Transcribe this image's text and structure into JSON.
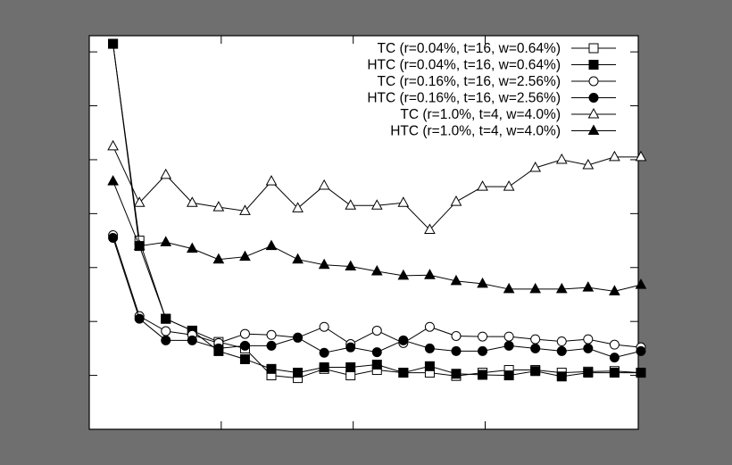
{
  "chart_data": {
    "type": "line",
    "title": "",
    "xlabel": "",
    "ylabel": "",
    "x": [
      1,
      2,
      3,
      4,
      5,
      6,
      7,
      8,
      9,
      10,
      11,
      12,
      13,
      14,
      15,
      16,
      17,
      18,
      19,
      20,
      21
    ],
    "xlim": [
      0.1,
      20.9
    ],
    "ylim": [
      0,
      7.3
    ],
    "grid": false,
    "legend_position": "top-right",
    "series": [
      {
        "name": "TC (r=0.04%, t=16, w=0.64%)",
        "marker": "square-open",
        "values": [
          7.15,
          3.5,
          2.05,
          1.83,
          1.62,
          1.5,
          1.0,
          0.95,
          1.12,
          1.0,
          1.1,
          1.05,
          1.05,
          0.99,
          1.05,
          1.1,
          1.1,
          1.05,
          1.07,
          1.08,
          1.05
        ]
      },
      {
        "name": "HTC (r=0.04%, t=16, w=0.64%)",
        "marker": "square-filled",
        "values": [
          7.15,
          3.4,
          2.05,
          1.83,
          1.45,
          1.3,
          1.12,
          1.05,
          1.15,
          1.15,
          1.2,
          1.05,
          1.17,
          1.03,
          1.01,
          1.0,
          1.08,
          0.98,
          1.05,
          1.05,
          1.05
        ]
      },
      {
        "name": "TC (r=0.16%, t=16, w=2.56%)",
        "marker": "circle-open",
        "values": [
          3.6,
          2.1,
          1.82,
          1.75,
          1.6,
          1.77,
          1.75,
          1.7,
          1.9,
          1.58,
          1.83,
          1.6,
          1.9,
          1.73,
          1.72,
          1.72,
          1.67,
          1.63,
          1.67,
          1.57,
          1.52
        ]
      },
      {
        "name": "HTC (r=0.16%, t=16, w=2.56%)",
        "marker": "circle-filled",
        "values": [
          3.55,
          2.05,
          1.65,
          1.65,
          1.5,
          1.55,
          1.55,
          1.7,
          1.42,
          1.52,
          1.43,
          1.65,
          1.5,
          1.45,
          1.45,
          1.55,
          1.5,
          1.45,
          1.5,
          1.33,
          1.45
        ]
      },
      {
        "name": "TC (r=1.0%, t=4, w=4.0%)",
        "marker": "triangle-open",
        "values": [
          5.25,
          4.2,
          4.72,
          4.2,
          4.12,
          4.05,
          4.6,
          4.1,
          4.52,
          4.15,
          4.15,
          4.2,
          3.7,
          4.22,
          4.5,
          4.5,
          4.85,
          5.0,
          4.9,
          5.05,
          5.05
        ]
      },
      {
        "name": "HTC (r=1.0%, t=4, w=4.0%)",
        "marker": "triangle-filled",
        "values": [
          4.6,
          3.4,
          3.47,
          3.35,
          3.15,
          3.2,
          3.4,
          3.15,
          3.05,
          3.02,
          2.93,
          2.85,
          2.86,
          2.75,
          2.7,
          2.6,
          2.6,
          2.6,
          2.63,
          2.56,
          2.68
        ]
      }
    ]
  }
}
